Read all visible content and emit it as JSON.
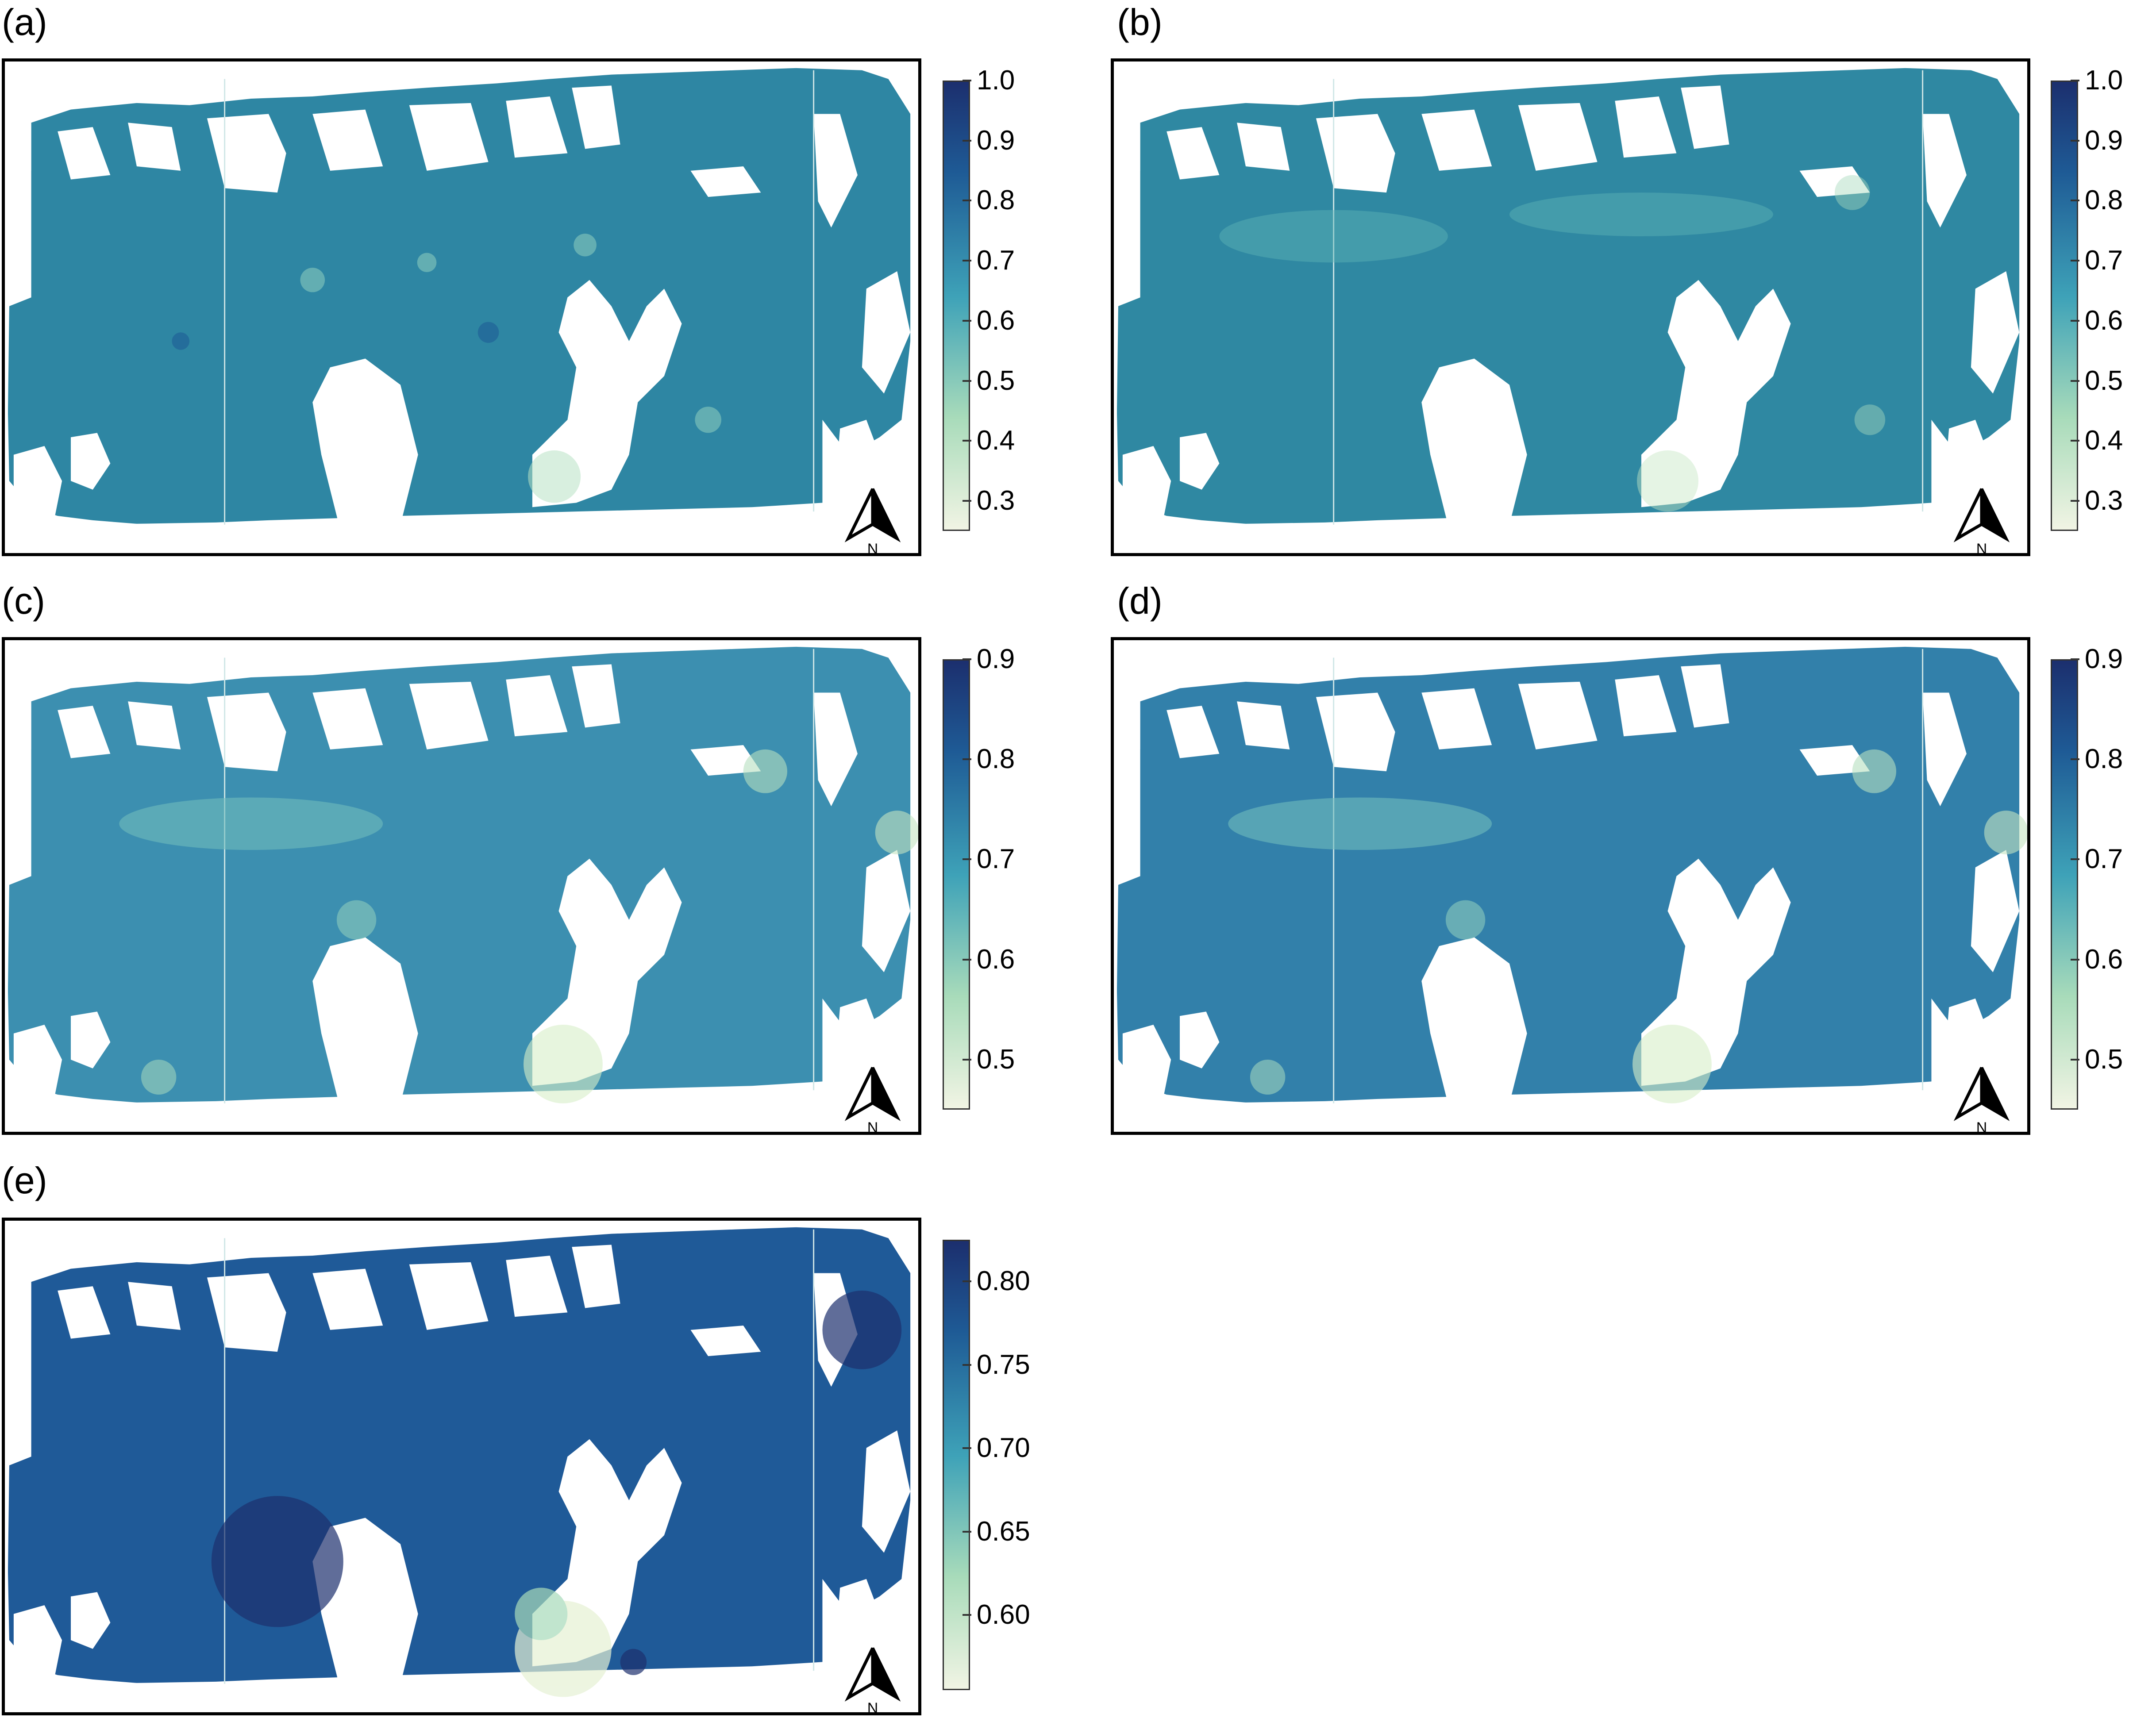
{
  "panels": [
    {
      "label": "(a)",
      "colorbar_ticks": [
        "1.0",
        "0.9",
        "0.8",
        "0.7",
        "0.6",
        "0.5",
        "0.4",
        "0.3"
      ],
      "colorbar_range": [
        0.25,
        1.0
      ],
      "texture": "grainy",
      "north_label": "N"
    },
    {
      "label": "(b)",
      "colorbar_ticks": [
        "1.0",
        "0.9",
        "0.8",
        "0.7",
        "0.6",
        "0.5",
        "0.4",
        "0.3"
      ],
      "colorbar_range": [
        0.25,
        1.0
      ],
      "texture": "mottled",
      "north_label": "N"
    },
    {
      "label": "(c)",
      "colorbar_ticks": [
        "0.9",
        "0.8",
        "0.7",
        "0.6",
        "0.5"
      ],
      "colorbar_range": [
        0.45,
        0.9
      ],
      "texture": "smooth-light",
      "north_label": "N"
    },
    {
      "label": "(d)",
      "colorbar_ticks": [
        "0.9",
        "0.8",
        "0.7",
        "0.6",
        "0.5"
      ],
      "colorbar_range": [
        0.45,
        0.9
      ],
      "texture": "smooth",
      "north_label": "N"
    },
    {
      "label": "(e)",
      "colorbar_ticks": [
        "0.80",
        "0.75",
        "0.70",
        "0.65",
        "0.60"
      ],
      "colorbar_range": [
        0.555,
        0.825
      ],
      "texture": "smooth-dark",
      "north_label": "N"
    }
  ],
  "colors": {
    "ramp_low": "#f1f4e4",
    "ramp_mid_low": "#a8dbba",
    "ramp_mid": "#3ea2b8",
    "ramp_high": "#1e5a95",
    "ramp_top": "#1c2f6e",
    "frame": "#000000",
    "fill_a": "#2e86a3",
    "fill_b": "#2f88a2",
    "fill_c": "#3c8fb0",
    "fill_d": "#3280aa",
    "fill_e": "#1f5a98"
  }
}
